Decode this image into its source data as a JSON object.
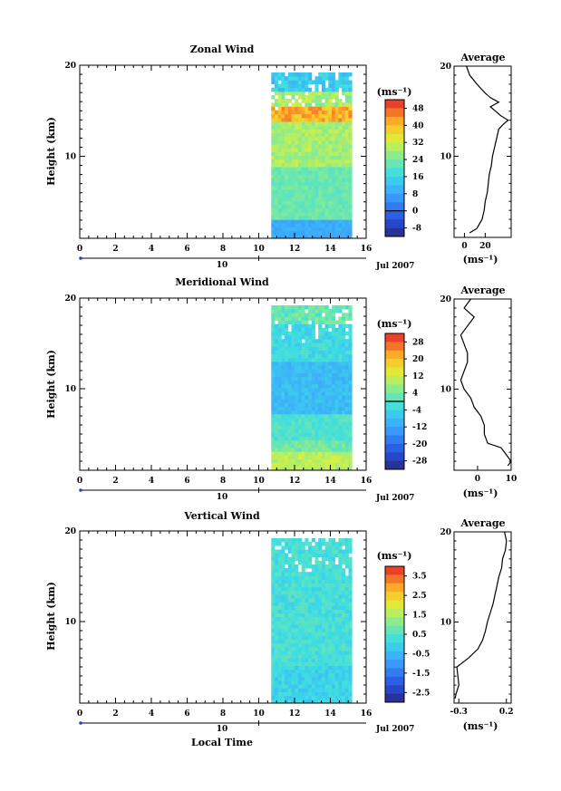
{
  "chart_data": [
    {
      "type": "heatmap",
      "title": "Zonal Wind",
      "ylabel": "Height (km)",
      "xlabel": "",
      "x_ticks": [
        0,
        2,
        4,
        6,
        8,
        10,
        12,
        14,
        16
      ],
      "y_ticks": [
        10,
        20
      ],
      "xlim": [
        0,
        16
      ],
      "ylim": [
        1,
        20
      ],
      "date_axis": {
        "tick": "10",
        "label": "Jul 2007"
      },
      "data_extent_hours": [
        10.7,
        15.2
      ],
      "colorbar": {
        "unit": "(ms⁻¹)",
        "levels": [
          -8,
          0,
          8,
          16,
          24,
          32,
          40,
          48
        ],
        "range": [
          -12,
          52
        ],
        "contour": 0
      },
      "profile": {
        "title": "Average",
        "xlabel": "(ms⁻¹)",
        "x_ticks": [
          0,
          20
        ],
        "xlim": [
          -10,
          45
        ],
        "heights": [
          1.5,
          2,
          3,
          4,
          5,
          6,
          7,
          8,
          9,
          10,
          11,
          12,
          13,
          13.5,
          14,
          14.5,
          15,
          15.5,
          16,
          16.5,
          17,
          18,
          19,
          20
        ],
        "values": [
          5,
          12,
          17,
          19,
          20,
          22,
          23,
          24,
          26,
          27,
          29,
          31,
          33,
          37,
          42,
          35,
          30,
          25,
          33,
          25,
          20,
          12,
          5,
          2
        ]
      }
    },
    {
      "type": "heatmap",
      "title": "Meridional Wind",
      "ylabel": "Height (km)",
      "xlabel": "",
      "x_ticks": [
        0,
        2,
        4,
        6,
        8,
        10,
        12,
        14,
        16
      ],
      "y_ticks": [
        10,
        20
      ],
      "xlim": [
        0,
        16
      ],
      "ylim": [
        1,
        20
      ],
      "date_axis": {
        "tick": "10",
        "label": "Jul 2007"
      },
      "data_extent_hours": [
        10.7,
        15.2
      ],
      "colorbar": {
        "unit": "(ms⁻¹)",
        "levels": [
          -28,
          -20,
          -12,
          -4,
          4,
          12,
          20,
          28
        ],
        "range": [
          -32,
          32
        ],
        "contour": 0
      },
      "profile": {
        "title": "Average",
        "xlabel": "(ms⁻¹)",
        "x_ticks": [
          0,
          10
        ],
        "xlim": [
          -7,
          10
        ],
        "heights": [
          1.5,
          2,
          3,
          3.5,
          4,
          5,
          6,
          7,
          8,
          9,
          10,
          11,
          12,
          13,
          14,
          15,
          16,
          17,
          18,
          19,
          20
        ],
        "values": [
          9,
          10,
          8,
          7,
          3,
          2,
          2,
          1,
          -1,
          -2,
          -4,
          -5,
          -4,
          -3,
          -3,
          -4,
          -5,
          -3,
          -1,
          -4,
          -2
        ]
      }
    },
    {
      "type": "heatmap",
      "title": "Vertical Wind",
      "ylabel": "Height (km)",
      "xlabel": "Local Time",
      "x_ticks": [
        0,
        2,
        4,
        6,
        8,
        10,
        12,
        14,
        16
      ],
      "y_ticks": [
        10,
        20
      ],
      "xlim": [
        0,
        16
      ],
      "ylim": [
        1,
        20
      ],
      "date_axis": {
        "tick": "10",
        "label": "Jul 2007"
      },
      "data_extent_hours": [
        10.7,
        15.2
      ],
      "colorbar": {
        "unit": "(ms⁻¹)",
        "levels": [
          -2.5,
          -1.5,
          -0.5,
          0.5,
          1.5,
          2.5,
          3.5
        ],
        "range": [
          -3,
          4
        ],
        "contour": null
      },
      "profile": {
        "title": "Average",
        "xlabel": "(ms⁻¹)",
        "x_ticks": [
          -0.3,
          0.2
        ],
        "xlim": [
          -0.35,
          0.25
        ],
        "heights": [
          1.5,
          2,
          3,
          4,
          5,
          6,
          7,
          8,
          9,
          10,
          11,
          12,
          13,
          14,
          15,
          16,
          17,
          18,
          19,
          20
        ],
        "values": [
          -0.34,
          -0.33,
          -0.3,
          -0.31,
          -0.32,
          -0.2,
          -0.1,
          -0.05,
          -0.02,
          0.0,
          0.03,
          0.06,
          0.08,
          0.1,
          0.12,
          0.15,
          0.16,
          0.19,
          0.2,
          0.18
        ]
      }
    }
  ]
}
